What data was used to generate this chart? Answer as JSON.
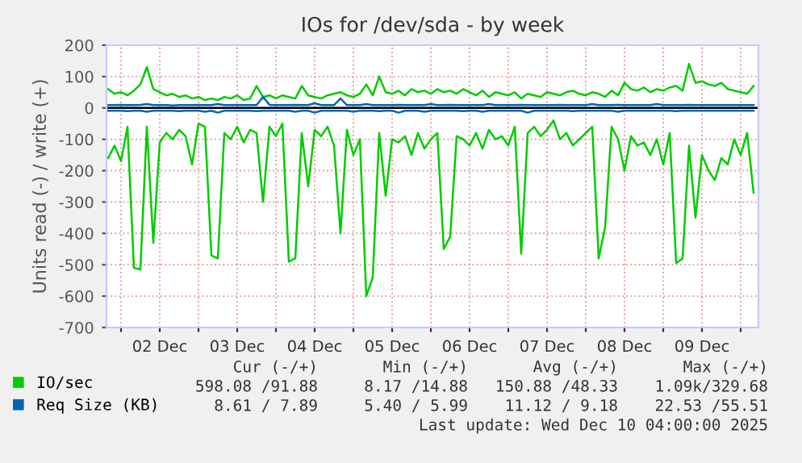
{
  "chart_data": {
    "type": "line",
    "title": "IOs for /dev/sda - by week",
    "ylabel": "Units read (-) / write (+)",
    "xlim": [
      "2025-12-01T19:30",
      "2025-12-10T05:30"
    ],
    "xticks": [
      {
        "value": "2025-12-02T00:00",
        "label": null
      },
      {
        "value": "2025-12-02T12:00",
        "label": "02 Dec"
      },
      {
        "value": "2025-12-03T00:00",
        "label": null
      },
      {
        "value": "2025-12-03T12:00",
        "label": "03 Dec"
      },
      {
        "value": "2025-12-04T00:00",
        "label": null
      },
      {
        "value": "2025-12-04T12:00",
        "label": "04 Dec"
      },
      {
        "value": "2025-12-05T00:00",
        "label": null
      },
      {
        "value": "2025-12-05T12:00",
        "label": "05 Dec"
      },
      {
        "value": "2025-12-06T00:00",
        "label": null
      },
      {
        "value": "2025-12-06T12:00",
        "label": "06 Dec"
      },
      {
        "value": "2025-12-07T00:00",
        "label": null
      },
      {
        "value": "2025-12-07T12:00",
        "label": "07 Dec"
      },
      {
        "value": "2025-12-08T00:00",
        "label": null
      },
      {
        "value": "2025-12-08T12:00",
        "label": "08 Dec"
      },
      {
        "value": "2025-12-09T00:00",
        "label": null
      },
      {
        "value": "2025-12-09T12:00",
        "label": "09 Dec"
      },
      {
        "value": "2025-12-10T00:00",
        "label": null
      }
    ],
    "ylim": [
      -700,
      200
    ],
    "yticks": [
      -700,
      -600,
      -500,
      -400,
      -300,
      -200,
      -100,
      0,
      100,
      200
    ],
    "grid": true,
    "legend": "bottom left",
    "marker": "none",
    "line_style": "solid",
    "ref_lines": [
      {
        "axis": "y",
        "value": 0,
        "color": "#000000"
      }
    ],
    "x": [
      "2025-12-01T20:00",
      "2025-12-01T22:00",
      "2025-12-02T00:00",
      "2025-12-02T02:00",
      "2025-12-02T04:00",
      "2025-12-02T06:00",
      "2025-12-02T08:00",
      "2025-12-02T10:00",
      "2025-12-02T12:00",
      "2025-12-02T14:00",
      "2025-12-02T16:00",
      "2025-12-02T18:00",
      "2025-12-02T20:00",
      "2025-12-02T22:00",
      "2025-12-03T00:00",
      "2025-12-03T02:00",
      "2025-12-03T04:00",
      "2025-12-03T06:00",
      "2025-12-03T08:00",
      "2025-12-03T10:00",
      "2025-12-03T12:00",
      "2025-12-03T14:00",
      "2025-12-03T16:00",
      "2025-12-03T18:00",
      "2025-12-03T20:00",
      "2025-12-03T22:00",
      "2025-12-04T00:00",
      "2025-12-04T02:00",
      "2025-12-04T04:00",
      "2025-12-04T06:00",
      "2025-12-04T08:00",
      "2025-12-04T10:00",
      "2025-12-04T12:00",
      "2025-12-04T14:00",
      "2025-12-04T16:00",
      "2025-12-04T18:00",
      "2025-12-04T20:00",
      "2025-12-04T22:00",
      "2025-12-05T00:00",
      "2025-12-05T02:00",
      "2025-12-05T04:00",
      "2025-12-05T06:00",
      "2025-12-05T08:00",
      "2025-12-05T10:00",
      "2025-12-05T12:00",
      "2025-12-05T14:00",
      "2025-12-05T16:00",
      "2025-12-05T18:00",
      "2025-12-05T20:00",
      "2025-12-05T22:00",
      "2025-12-06T00:00",
      "2025-12-06T02:00",
      "2025-12-06T04:00",
      "2025-12-06T06:00",
      "2025-12-06T08:00",
      "2025-12-06T10:00",
      "2025-12-06T12:00",
      "2025-12-06T14:00",
      "2025-12-06T16:00",
      "2025-12-06T18:00",
      "2025-12-06T20:00",
      "2025-12-06T22:00",
      "2025-12-07T00:00",
      "2025-12-07T02:00",
      "2025-12-07T04:00",
      "2025-12-07T06:00",
      "2025-12-07T08:00",
      "2025-12-07T10:00",
      "2025-12-07T12:00",
      "2025-12-07T14:00",
      "2025-12-07T16:00",
      "2025-12-07T18:00",
      "2025-12-07T20:00",
      "2025-12-07T22:00",
      "2025-12-08T00:00",
      "2025-12-08T02:00",
      "2025-12-08T04:00",
      "2025-12-08T06:00",
      "2025-12-08T08:00",
      "2025-12-08T10:00",
      "2025-12-08T12:00",
      "2025-12-08T14:00",
      "2025-12-08T16:00",
      "2025-12-08T18:00",
      "2025-12-08T20:00",
      "2025-12-08T22:00",
      "2025-12-09T00:00",
      "2025-12-09T02:00",
      "2025-12-09T04:00",
      "2025-12-09T06:00",
      "2025-12-09T08:00",
      "2025-12-09T10:00",
      "2025-12-09T12:00",
      "2025-12-09T14:00",
      "2025-12-09T16:00",
      "2025-12-09T18:00",
      "2025-12-09T20:00",
      "2025-12-09T22:00",
      "2025-12-10T00:00",
      "2025-12-10T02:00",
      "2025-12-10T04:00"
    ],
    "series": [
      {
        "name": "IO/sec",
        "color": "#00cc00",
        "values": [
          60,
          45,
          50,
          40,
          55,
          75,
          130,
          60,
          50,
          40,
          45,
          35,
          40,
          30,
          35,
          25,
          30,
          25,
          35,
          30,
          40,
          25,
          30,
          70,
          35,
          40,
          30,
          40,
          35,
          30,
          70,
          40,
          35,
          30,
          40,
          45,
          50,
          40,
          35,
          45,
          75,
          40,
          100,
          50,
          45,
          55,
          40,
          60,
          50,
          55,
          45,
          60,
          50,
          55,
          45,
          60,
          50,
          40,
          55,
          35,
          50,
          45,
          40,
          50,
          30,
          45,
          40,
          35,
          50,
          45,
          40,
          50,
          55,
          45,
          40,
          50,
          45,
          35,
          55,
          40,
          80,
          60,
          55,
          65,
          50,
          60,
          55,
          65,
          70,
          55,
          140,
          80,
          85,
          75,
          70,
          80,
          60,
          55,
          50,
          45,
          70
        ]
      },
      {
        "color": "#00cc00",
        "values": [
          -160,
          -120,
          -170,
          -60,
          -510,
          -515,
          -60,
          -430,
          -110,
          -80,
          -100,
          -70,
          -90,
          -180,
          -50,
          -60,
          -470,
          -480,
          -80,
          -100,
          -60,
          -110,
          -70,
          -80,
          -300,
          -60,
          -90,
          -50,
          -490,
          -480,
          -80,
          -250,
          -70,
          -90,
          -60,
          -120,
          -400,
          -70,
          -150,
          -100,
          -600,
          -540,
          -80,
          -280,
          -100,
          -110,
          -90,
          -150,
          -80,
          -130,
          -100,
          -80,
          -450,
          -410,
          -90,
          -100,
          -120,
          -80,
          -130,
          -70,
          -100,
          -90,
          -120,
          -60,
          -465,
          -80,
          -60,
          -90,
          -70,
          -40,
          -100,
          -80,
          -120,
          -100,
          -80,
          -60,
          -480,
          -380,
          -60,
          -100,
          -200,
          -90,
          -120,
          -110,
          -150,
          -100,
          -180,
          -80,
          -495,
          -480,
          -120,
          -350,
          -150,
          -200,
          -230,
          -160,
          -180,
          -100,
          -150,
          -80,
          -270
        ]
      },
      {
        "name": "Req Size (KB)",
        "color": "#0066b3",
        "values": [
          9,
          9,
          10,
          9,
          9,
          10,
          12,
          9,
          9,
          9,
          8,
          9,
          9,
          9,
          10,
          9,
          9,
          12,
          9,
          9,
          10,
          9,
          9,
          9,
          35,
          10,
          9,
          9,
          9,
          10,
          9,
          9,
          15,
          9,
          9,
          9,
          30,
          9,
          9,
          9,
          12,
          9,
          9,
          9,
          9,
          10,
          9,
          9,
          9,
          9,
          12,
          9,
          9,
          10,
          9,
          9,
          9,
          9,
          9,
          12,
          9,
          9,
          9,
          9,
          10,
          9,
          9,
          9,
          9,
          9,
          10,
          9,
          9,
          9,
          9,
          12,
          9,
          9,
          9,
          10,
          9,
          9,
          9,
          9,
          9,
          12,
          9,
          9,
          9,
          9,
          10,
          9,
          9,
          9,
          9,
          9,
          9,
          9,
          9,
          9,
          9
        ]
      },
      {
        "color": "#0066b3",
        "values": [
          -9,
          -9,
          -9,
          -10,
          -9,
          -9,
          -12,
          -9,
          -9,
          -9,
          -9,
          -10,
          -9,
          -9,
          -9,
          -12,
          -9,
          -15,
          -9,
          -9,
          -9,
          -9,
          -9,
          -10,
          -9,
          -9,
          -9,
          -9,
          -9,
          -12,
          -9,
          -9,
          -15,
          -9,
          -9,
          -9,
          -9,
          -9,
          -12,
          -9,
          -9,
          -9,
          -10,
          -9,
          -9,
          -15,
          -9,
          -9,
          -9,
          -12,
          -9,
          -9,
          -9,
          -9,
          -9,
          -10,
          -9,
          -9,
          -12,
          -9,
          -9,
          -9,
          -9,
          -9,
          -9,
          -15,
          -9,
          -9,
          -9,
          -9,
          -9,
          -9,
          -10,
          -9,
          -9,
          -9,
          -9,
          -9,
          -9,
          -12,
          -9,
          -9,
          -9,
          -9,
          -9,
          -9,
          -9,
          -9,
          -10,
          -9,
          -9,
          -9,
          -9,
          -9,
          -9,
          -9,
          -9,
          -9,
          -9,
          -9,
          -9
        ]
      }
    ],
    "annotations": [
      "Cur (-/+)",
      "Min (-/+)",
      "Avg (-/+)",
      "Max (-/+)",
      "598.08 /91.88",
      "8.17 /14.88",
      "150.88 /48.33",
      "1.09k/329.68",
      "8.61 / 7.89",
      "5.40 / 5.99",
      "11.12 / 9.18",
      "22.53 /55.51",
      "Last update: Wed Dec 10 04:00:00 2025"
    ]
  }
}
